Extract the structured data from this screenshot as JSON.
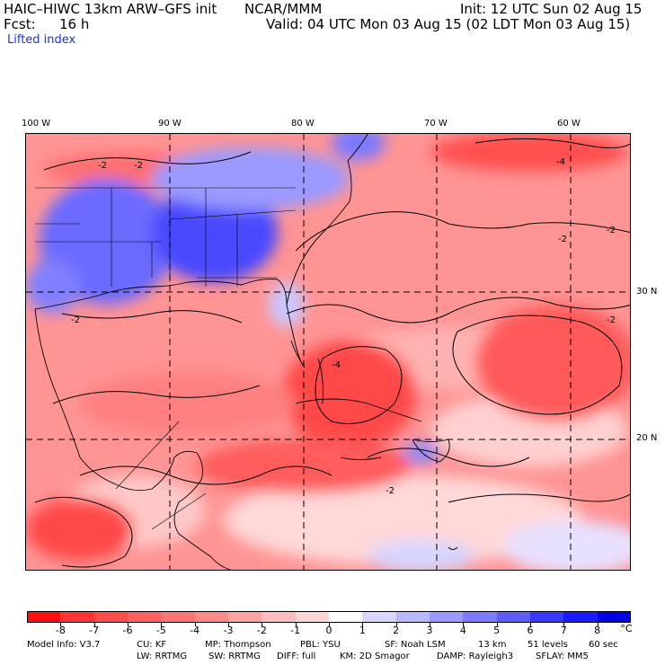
{
  "header": {
    "model": "HAIC–HIWC 13km ARW–GFS init",
    "center": "NCAR/MMM",
    "init": "Init: 12 UTC Sun 02 Aug 15",
    "fcst_label": "Fcst:",
    "fcst_value": "16 h",
    "valid": "Valid: 04 UTC Mon 03 Aug 15 (02 LDT Mon 03 Aug 15)",
    "field": "Lifted index"
  },
  "map": {
    "lon_labels": [
      "100 W",
      "90 W",
      "80 W",
      "70 W",
      "60 W"
    ],
    "lat_labels": [
      "30 N",
      "20 N"
    ],
    "contour_labels": [
      "-2",
      "-2",
      "-2",
      "-2",
      "-2",
      "-4",
      "-4",
      "-2",
      "-2"
    ]
  },
  "colorbar": {
    "labels": [
      "-8",
      "-7",
      "-6",
      "-5",
      "-4",
      "-3",
      "-2",
      "-1",
      "0",
      "1",
      "2",
      "3",
      "4",
      "5",
      "6",
      "7",
      "8"
    ],
    "unit": "°C",
    "colors": [
      "#ff1010",
      "#ff3434",
      "#ff4c4c",
      "#ff6060",
      "#ff7474",
      "#ff8a8a",
      "#ffa2a2",
      "#ffbcbc",
      "#ffd6d6",
      "#ffffff",
      "#d6d6ff",
      "#b8b8ff",
      "#9a9aff",
      "#7c7cff",
      "#5e5eff",
      "#3a3aff",
      "#1a1aff",
      "#0000e0"
    ]
  },
  "footer": {
    "line1": [
      "Model Info: V3.7",
      "CU: KF",
      "MP: Thompson",
      "PBL: YSU",
      "SF: Noah LSM",
      "13 km",
      "51 levels",
      "60 sec"
    ],
    "line2": [
      "LW: RRTMG",
      "SW: RRTMG",
      "DIFF: full",
      "KM: 2D Smagor",
      "DAMP: Rayleigh3",
      "SFLAY: MM5"
    ]
  }
}
